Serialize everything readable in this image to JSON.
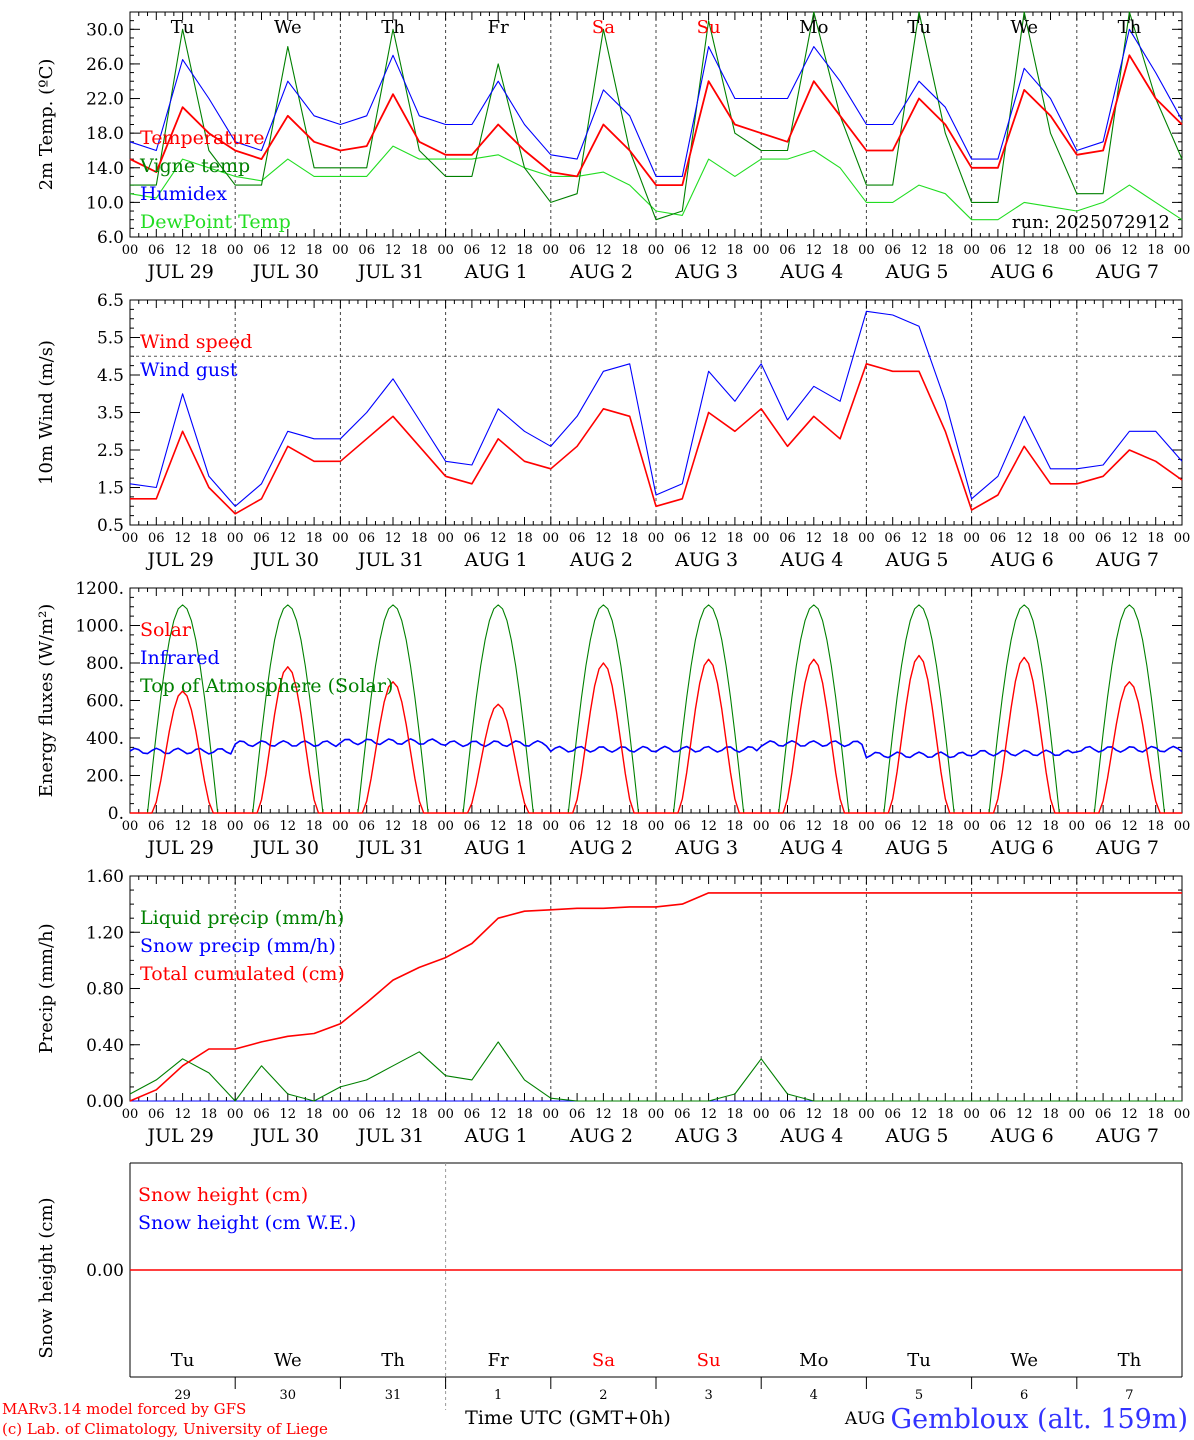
{
  "footer": {
    "credit_line1": "MARv3.14 model forced by GFS",
    "credit_line2": "(c) Lab. of Climatology, University of Liege",
    "xlabel": "Time UTC (GMT+0h)",
    "station": "Gembloux (alt. 159m)",
    "month_label": "AUG"
  },
  "colors": {
    "temperature": "#ff0000",
    "vigne": "#008000",
    "humidex": "#0000ff",
    "dewpoint": "#22dd22",
    "weekend": "#ff0000",
    "axis": "#000000"
  },
  "x_axis": {
    "hour_ticks": [
      "00",
      "06",
      "12",
      "18"
    ],
    "date_labels": [
      "JUL 29",
      "JUL 30",
      "JUL 31",
      "AUG  1",
      "AUG  2",
      "AUG  3",
      "AUG  4",
      "AUG  5",
      "AUG  6",
      "AUG  7"
    ],
    "final_tick": "00"
  },
  "days": {
    "weekday_labels": [
      "Tu",
      "We",
      "Th",
      "Fr",
      "Sa",
      "Su",
      "Mo",
      "Tu",
      "We",
      "Th"
    ],
    "weekend_flags": [
      false,
      false,
      false,
      false,
      true,
      true,
      false,
      false,
      false,
      false
    ],
    "day_numbers": [
      "29",
      "30",
      "31",
      "1",
      "2",
      "3",
      "4",
      "5",
      "6",
      "7"
    ]
  },
  "chart_data": [
    {
      "id": "temperature",
      "type": "line",
      "ylabel": "2m Temp. (ºC)",
      "ylim": [
        6,
        32
      ],
      "yticks": [
        "6.0",
        "10.0",
        "14.0",
        "18.0",
        "22.0",
        "26.0",
        "30.0"
      ],
      "ytick_values": [
        6,
        10,
        14,
        18,
        22,
        26,
        30
      ],
      "annotation": "run: 2025072912",
      "x_hours": [
        0,
        6,
        12,
        18,
        24,
        30,
        36,
        42,
        48,
        54,
        60,
        66,
        72,
        78,
        84,
        90,
        96,
        102,
        108,
        114,
        120,
        126,
        132,
        138,
        144,
        150,
        156,
        162,
        168,
        174,
        180,
        186,
        192,
        198,
        204,
        210,
        216,
        222,
        228,
        234,
        240
      ],
      "series": [
        {
          "name": "Temperature",
          "color_key": "temperature",
          "values": [
            15,
            13.5,
            21,
            18,
            16,
            15,
            20,
            17,
            16,
            16.5,
            22.5,
            17,
            15.5,
            15.5,
            19,
            16,
            13.5,
            13,
            19,
            16,
            12,
            12,
            24,
            19,
            18,
            17,
            24,
            20,
            16,
            16,
            22,
            19,
            14,
            14,
            23,
            20,
            15.5,
            16,
            27,
            22,
            19
          ]
        },
        {
          "name": "Vigne temp",
          "color_key": "vigne",
          "values": [
            12,
            12,
            30,
            16,
            12,
            12,
            28,
            14,
            14,
            14,
            30,
            16,
            13,
            13,
            26,
            14,
            10,
            11,
            30,
            16,
            8,
            9,
            31,
            18,
            16,
            16,
            32,
            20,
            12,
            12,
            32,
            18,
            10,
            10,
            32,
            18,
            11,
            11,
            32,
            22,
            15
          ]
        },
        {
          "name": "Humidex",
          "color_key": "humidex",
          "values": [
            17,
            16,
            26.5,
            22,
            17,
            16,
            24,
            20,
            19,
            20,
            27,
            20,
            19,
            19,
            24,
            19,
            15.5,
            15,
            23,
            20,
            13,
            13,
            28,
            22,
            22,
            22,
            28,
            24,
            19,
            19,
            24,
            21,
            15,
            15,
            25.5,
            22,
            16,
            17,
            30,
            25,
            19.5
          ]
        },
        {
          "name": "DewPoint Temp",
          "color_key": "dewpoint",
          "values": [
            11,
            10.5,
            15,
            14,
            13,
            12.5,
            15,
            13,
            13,
            13,
            16.5,
            15,
            15,
            15,
            15.5,
            14,
            13,
            13,
            13.5,
            12,
            9,
            8.5,
            15,
            13,
            15,
            15,
            16,
            14,
            10,
            10,
            12,
            11,
            8,
            8,
            10,
            9.5,
            9,
            10,
            12,
            10,
            8
          ]
        }
      ]
    },
    {
      "id": "wind",
      "type": "line",
      "ylabel": "10m Wind (m/s)",
      "ylim": [
        0.5,
        6.5
      ],
      "yticks": [
        "0.5",
        "1.5",
        "2.5",
        "3.5",
        "4.5",
        "5.5",
        "6.5"
      ],
      "ytick_values": [
        0.5,
        1.5,
        2.5,
        3.5,
        4.5,
        5.5,
        6.5
      ],
      "reference_line": 5.0,
      "x_hours": [
        0,
        6,
        12,
        18,
        24,
        30,
        36,
        42,
        48,
        54,
        60,
        66,
        72,
        78,
        84,
        90,
        96,
        102,
        108,
        114,
        120,
        126,
        132,
        138,
        144,
        150,
        156,
        162,
        168,
        174,
        180,
        186,
        192,
        198,
        204,
        210,
        216,
        222,
        228,
        234,
        240
      ],
      "series": [
        {
          "name": "Wind speed",
          "color_key": "temperature",
          "values": [
            1.2,
            1.2,
            3.0,
            1.5,
            0.8,
            1.2,
            2.6,
            2.2,
            2.2,
            2.8,
            3.4,
            2.6,
            1.8,
            1.6,
            2.8,
            2.2,
            2.0,
            2.6,
            3.6,
            3.4,
            1.0,
            1.2,
            3.5,
            3.0,
            3.6,
            2.6,
            3.4,
            2.8,
            4.8,
            4.6,
            4.6,
            3.0,
            0.9,
            1.3,
            2.6,
            1.6,
            1.6,
            1.8,
            2.5,
            2.2,
            1.7
          ]
        },
        {
          "name": "Wind gust",
          "color_key": "humidex",
          "values": [
            1.6,
            1.5,
            4.0,
            1.8,
            1.0,
            1.6,
            3.0,
            2.8,
            2.8,
            3.5,
            4.4,
            3.3,
            2.2,
            2.1,
            3.6,
            3.0,
            2.6,
            3.4,
            4.6,
            4.8,
            1.3,
            1.6,
            4.6,
            3.8,
            4.8,
            3.3,
            4.2,
            3.8,
            6.2,
            6.1,
            5.8,
            3.8,
            1.2,
            1.8,
            3.4,
            2.0,
            2.0,
            2.1,
            3.0,
            3.0,
            2.2
          ]
        }
      ]
    },
    {
      "id": "energy",
      "type": "line",
      "ylabel": "Energy fluxes (W/m²)",
      "ylim": [
        0,
        1200
      ],
      "yticks": [
        "0.",
        "200.",
        "400.",
        "600.",
        "800.",
        "1000.",
        "1200."
      ],
      "ytick_values": [
        0,
        200,
        400,
        600,
        800,
        1000,
        1200
      ],
      "series": [
        {
          "name": "Solar",
          "color_key": "temperature",
          "daily_peaks": [
            650,
            780,
            700,
            580,
            800,
            820,
            820,
            840,
            830,
            700
          ]
        },
        {
          "name": "Infrared",
          "color_key": "humidex",
          "daily_levels": [
            330,
            370,
            380,
            370,
            340,
            340,
            370,
            310,
            320,
            340
          ]
        },
        {
          "name": "Top of Atmosphere (Solar)",
          "color_key": "vigne",
          "daily_peaks": [
            1110,
            1110,
            1110,
            1110,
            1110,
            1110,
            1110,
            1110,
            1110,
            1110
          ]
        }
      ]
    },
    {
      "id": "precip",
      "type": "line",
      "ylabel": "Precip (mm/h)",
      "ylim": [
        0,
        1.6
      ],
      "yticks": [
        "0.00",
        "0.40",
        "0.80",
        "1.20",
        "1.60"
      ],
      "ytick_values": [
        0,
        0.4,
        0.8,
        1.2,
        1.6
      ],
      "x_hours": [
        0,
        6,
        12,
        18,
        24,
        30,
        36,
        42,
        48,
        54,
        60,
        66,
        72,
        78,
        84,
        90,
        96,
        102,
        108,
        114,
        120,
        126,
        132,
        138,
        144,
        150,
        156,
        162,
        168,
        174,
        180,
        186,
        192,
        198,
        204,
        210,
        216,
        222,
        228,
        234,
        240
      ],
      "series": [
        {
          "name": "Liquid precip (mm/h)",
          "color_key": "vigne",
          "values": [
            0.05,
            0.15,
            0.3,
            0.2,
            0.0,
            0.25,
            0.05,
            0.0,
            0.1,
            0.15,
            0.25,
            0.35,
            0.18,
            0.15,
            0.42,
            0.15,
            0.02,
            0.0,
            0.0,
            0.0,
            0.0,
            0.0,
            0.0,
            0.05,
            0.3,
            0.05,
            0.0,
            0.0,
            0.0,
            0.0,
            0.0,
            0.0,
            0.0,
            0.0,
            0.0,
            0.0,
            0.0,
            0.0,
            0.0,
            0.0,
            0.0
          ]
        },
        {
          "name": "Snow precip (mm/h)",
          "color_key": "humidex",
          "values": [
            0,
            0,
            0,
            0,
            0,
            0,
            0,
            0,
            0,
            0,
            0,
            0,
            0,
            0,
            0,
            0,
            0,
            0,
            0,
            0,
            0,
            0,
            0,
            0,
            0,
            0,
            0,
            0,
            0,
            0,
            0,
            0,
            0,
            0,
            0,
            0,
            0,
            0,
            0,
            0,
            0
          ]
        },
        {
          "name": "Total cumulated (cm)",
          "color_key": "temperature",
          "values": [
            0.0,
            0.08,
            0.25,
            0.37,
            0.37,
            0.42,
            0.46,
            0.48,
            0.55,
            0.7,
            0.86,
            0.95,
            1.02,
            1.12,
            1.3,
            1.35,
            1.36,
            1.37,
            1.37,
            1.38,
            1.38,
            1.4,
            1.48,
            1.48,
            1.48,
            1.48,
            1.48,
            1.48,
            1.48,
            1.48,
            1.48,
            1.48,
            1.48,
            1.48,
            1.48,
            1.48,
            1.48,
            1.48,
            1.48,
            1.48,
            1.48
          ]
        }
      ]
    },
    {
      "id": "snow",
      "type": "line",
      "ylabel": "Snow height (cm)",
      "yticks": [
        "0.00"
      ],
      "ytick_values": [
        0
      ],
      "series": [
        {
          "name": "Snow height (cm)",
          "color_key": "temperature",
          "values": [
            0,
            0
          ]
        },
        {
          "name": "Snow height (cm W.E.)",
          "color_key": "humidex",
          "values": [
            0,
            0
          ]
        }
      ]
    }
  ]
}
